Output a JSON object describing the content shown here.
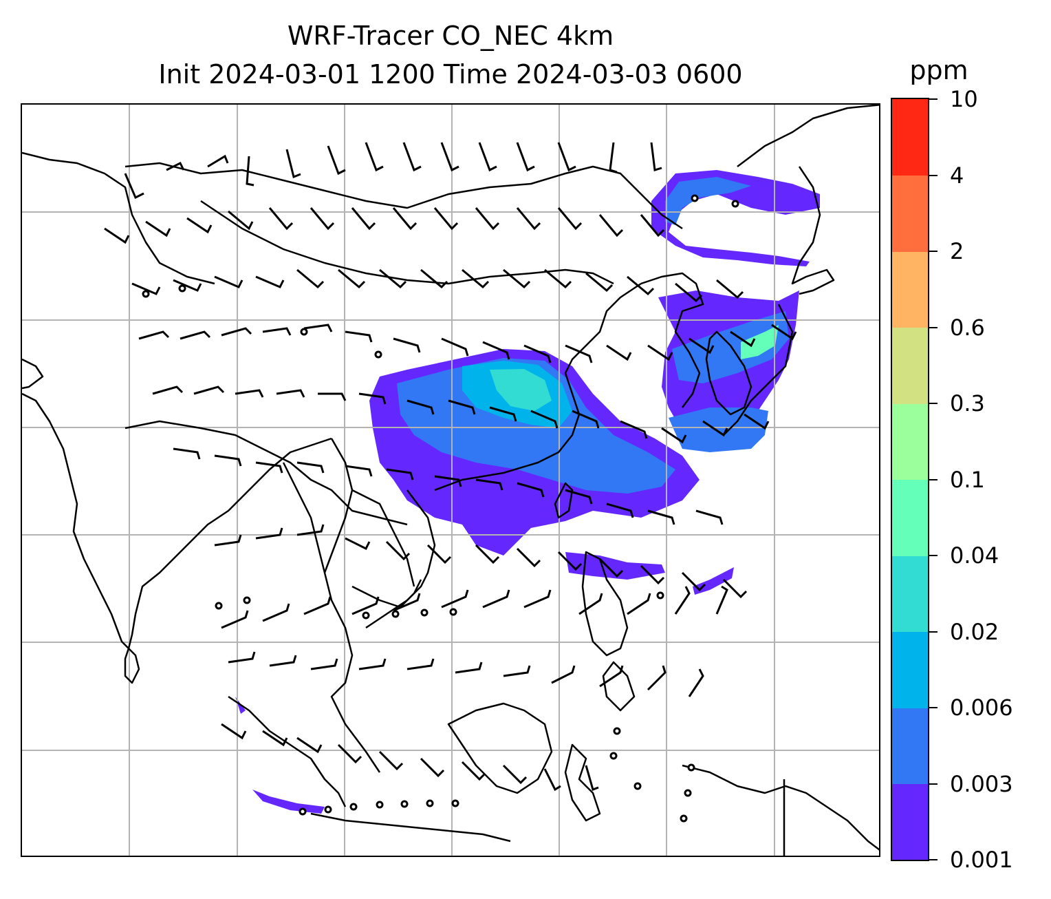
{
  "title": {
    "line1": "WRF-Tracer CO_NEC 4km",
    "line2": "Init 2024-03-01 1200 Time 2024-03-03 0600"
  },
  "colorbar": {
    "unit": "ppm",
    "levels": [
      "0.001",
      "0.003",
      "0.006",
      "0.02",
      "0.04",
      "0.1",
      "0.3",
      "0.6",
      "2",
      "4",
      "10"
    ],
    "colors": [
      "#6428ff",
      "#3278f5",
      "#00b4eb",
      "#32dcd2",
      "#64ffb9",
      "#9bff9b",
      "#d2e182",
      "#ffb464",
      "#ff6e3c",
      "#ff2814"
    ]
  },
  "map": {
    "gridline_color": "#b3b3b3",
    "coastline_color": "#000000",
    "barb_color": "#000000",
    "icons": [
      "coastline-layer",
      "wind-barb-layer",
      "tracer-plume-layer"
    ]
  }
}
